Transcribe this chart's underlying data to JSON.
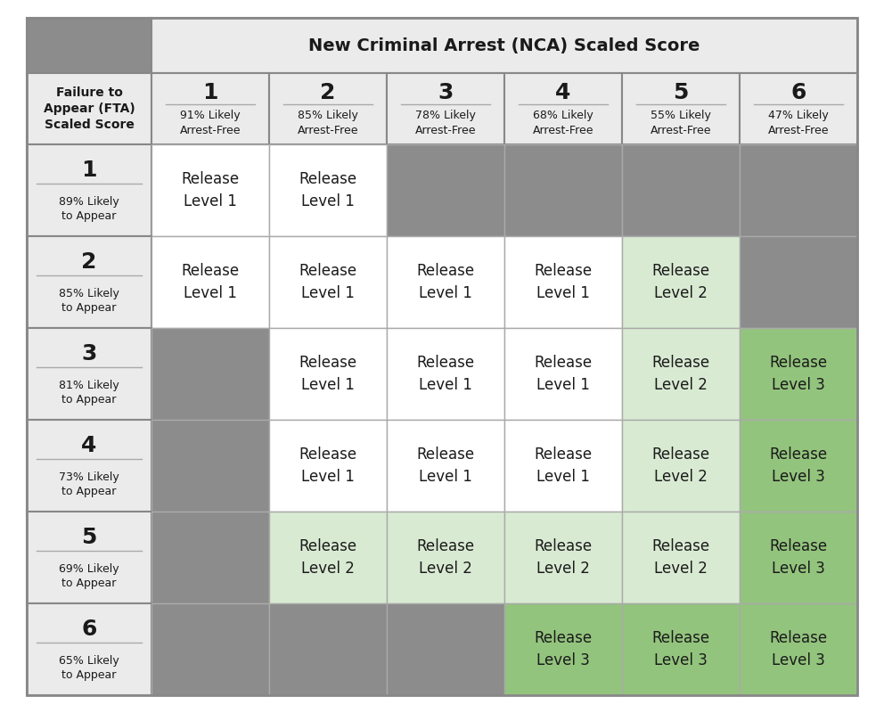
{
  "title_header": "New Criminal Arrest (NCA) Scaled Score",
  "row_header_title": "Failure to\nAppear (FTA)\nScaled Score",
  "nca_cols": [
    {
      "num": "1",
      "pct": "91% Likely\nArrest-Free"
    },
    {
      "num": "2",
      "pct": "85% Likely\nArrest-Free"
    },
    {
      "num": "3",
      "pct": "78% Likely\nArrest-Free"
    },
    {
      "num": "4",
      "pct": "68% Likely\nArrest-Free"
    },
    {
      "num": "5",
      "pct": "55% Likely\nArrest-Free"
    },
    {
      "num": "6",
      "pct": "47% Likely\nArrest-Free"
    }
  ],
  "fta_rows": [
    {
      "num": "1",
      "pct": "89% Likely\nto Appear"
    },
    {
      "num": "2",
      "pct": "85% Likely\nto Appear"
    },
    {
      "num": "3",
      "pct": "81% Likely\nto Appear"
    },
    {
      "num": "4",
      "pct": "73% Likely\nto Appear"
    },
    {
      "num": "5",
      "pct": "69% Likely\nto Appear"
    },
    {
      "num": "6",
      "pct": "65% Likely\nto Appear"
    }
  ],
  "grid": [
    [
      "L1",
      "L1",
      "G",
      "G",
      "G",
      "G"
    ],
    [
      "L1",
      "L1",
      "L1",
      "L1",
      "L2",
      "G"
    ],
    [
      "G",
      "L1",
      "L1",
      "L1",
      "L2",
      "L3"
    ],
    [
      "G",
      "L1",
      "L1",
      "L1",
      "L2",
      "L3"
    ],
    [
      "G",
      "L2",
      "L2",
      "L2",
      "L2",
      "L3"
    ],
    [
      "G",
      "G",
      "G",
      "L3",
      "L3",
      "L3"
    ]
  ],
  "color_L1": "#ffffff",
  "color_L2": "#d9ead3",
  "color_L3": "#93c47d",
  "color_G": "#8c8c8c",
  "color_corner": "#8c8c8c",
  "color_header_bg": "#ebebeb",
  "color_rowheader_bg": "#ebebeb",
  "color_border": "#999999",
  "color_text": "#1a1a1a",
  "figw": 9.92,
  "figh": 8.0,
  "dpi": 100
}
